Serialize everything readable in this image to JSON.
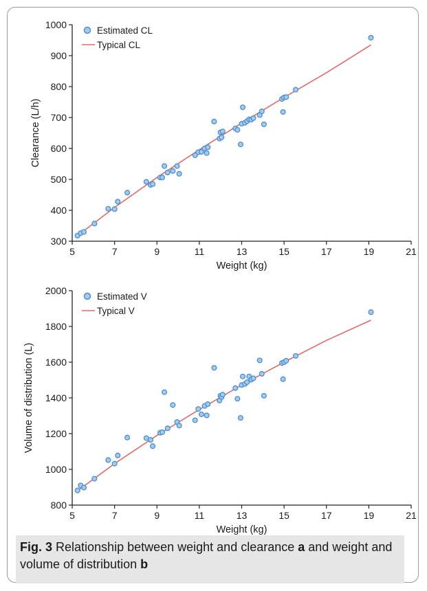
{
  "chart_data": [
    {
      "type": "scatter",
      "panel": "a",
      "xlabel": "Weight (kg)",
      "ylabel": "Clearance (L/h)",
      "xlim": [
        5,
        21
      ],
      "ylim": [
        300,
        1000
      ],
      "xticks": [
        5,
        7,
        9,
        11,
        13,
        15,
        17,
        19,
        21
      ],
      "yticks": [
        300,
        400,
        500,
        600,
        700,
        800,
        900,
        1000
      ],
      "grid": false,
      "legend_position": "top-left",
      "series": [
        {
          "name": "Estimated CL",
          "kind": "points",
          "color": "#4a8fd0",
          "x": [
            5.25,
            5.4,
            5.55,
            6.05,
            6.7,
            7.0,
            7.15,
            7.6,
            8.5,
            8.7,
            8.8,
            9.15,
            9.25,
            9.35,
            9.5,
            9.75,
            9.95,
            10.05,
            10.8,
            10.95,
            11.1,
            11.25,
            11.35,
            11.4,
            11.7,
            11.95,
            12.0,
            12.05,
            12.1,
            12.7,
            12.8,
            12.95,
            13.0,
            13.05,
            13.15,
            13.25,
            13.35,
            13.45,
            13.55,
            13.85,
            13.95,
            14.05,
            14.9,
            14.95,
            15.0,
            15.1,
            15.55,
            19.1
          ],
          "y": [
            318,
            326,
            330,
            357,
            405,
            404,
            428,
            457,
            492,
            482,
            485,
            506,
            506,
            543,
            522,
            527,
            543,
            518,
            578,
            588,
            589,
            600,
            585,
            604,
            687,
            632,
            652,
            636,
            655,
            665,
            660,
            613,
            680,
            733,
            683,
            688,
            694,
            693,
            698,
            708,
            720,
            678,
            760,
            718,
            765,
            766,
            790,
            958
          ]
        },
        {
          "name": "Typical CL",
          "kind": "line",
          "color": "#e06a6a",
          "x": [
            5.25,
            7,
            9,
            11,
            13,
            15,
            17,
            19.1
          ],
          "y": [
            318,
            409,
            506,
            596,
            682,
            765,
            845,
            935
          ]
        }
      ]
    },
    {
      "type": "scatter",
      "panel": "b",
      "xlabel": "Weight (kg)",
      "ylabel": "Volume of distribution (L)",
      "xlim": [
        5,
        21
      ],
      "ylim": [
        800,
        2000
      ],
      "xticks": [
        5,
        7,
        9,
        11,
        13,
        15,
        17,
        19,
        21
      ],
      "yticks": [
        800,
        1000,
        1200,
        1400,
        1600,
        1800,
        2000
      ],
      "grid": false,
      "legend_position": "top-left",
      "series": [
        {
          "name": "Estimated V",
          "kind": "points",
          "color": "#4a8fd0",
          "x": [
            5.25,
            5.4,
            5.55,
            6.05,
            6.7,
            7.0,
            7.15,
            7.6,
            8.5,
            8.7,
            8.8,
            9.15,
            9.25,
            9.35,
            9.5,
            9.75,
            9.95,
            10.05,
            10.8,
            10.95,
            11.1,
            11.25,
            11.35,
            11.4,
            11.7,
            11.95,
            12.0,
            12.05,
            12.1,
            12.7,
            12.8,
            12.95,
            13.0,
            13.05,
            13.15,
            13.25,
            13.35,
            13.45,
            13.55,
            13.85,
            13.95,
            14.05,
            14.9,
            14.95,
            15.0,
            15.1,
            15.55,
            19.1
          ],
          "y": [
            882,
            910,
            898,
            948,
            1052,
            1032,
            1078,
            1178,
            1175,
            1165,
            1130,
            1205,
            1208,
            1432,
            1230,
            1360,
            1265,
            1245,
            1275,
            1338,
            1308,
            1355,
            1302,
            1365,
            1568,
            1385,
            1412,
            1405,
            1418,
            1455,
            1395,
            1288,
            1472,
            1520,
            1478,
            1488,
            1520,
            1502,
            1510,
            1610,
            1535,
            1412,
            1595,
            1505,
            1600,
            1608,
            1635,
            1880
          ]
        },
        {
          "name": "Typical V",
          "kind": "line",
          "color": "#e06a6a",
          "x": [
            5.25,
            7,
            9,
            11,
            13,
            15,
            17,
            19.1
          ],
          "y": [
            880,
            1032,
            1190,
            1335,
            1472,
            1600,
            1722,
            1835
          ]
        }
      ]
    }
  ],
  "caption": {
    "fig_label": "Fig. 3",
    "text_1": " Relationship between weight and clearance ",
    "panel_a": "a",
    "text_2": " and weight and volume of distribution ",
    "panel_b": "b"
  }
}
